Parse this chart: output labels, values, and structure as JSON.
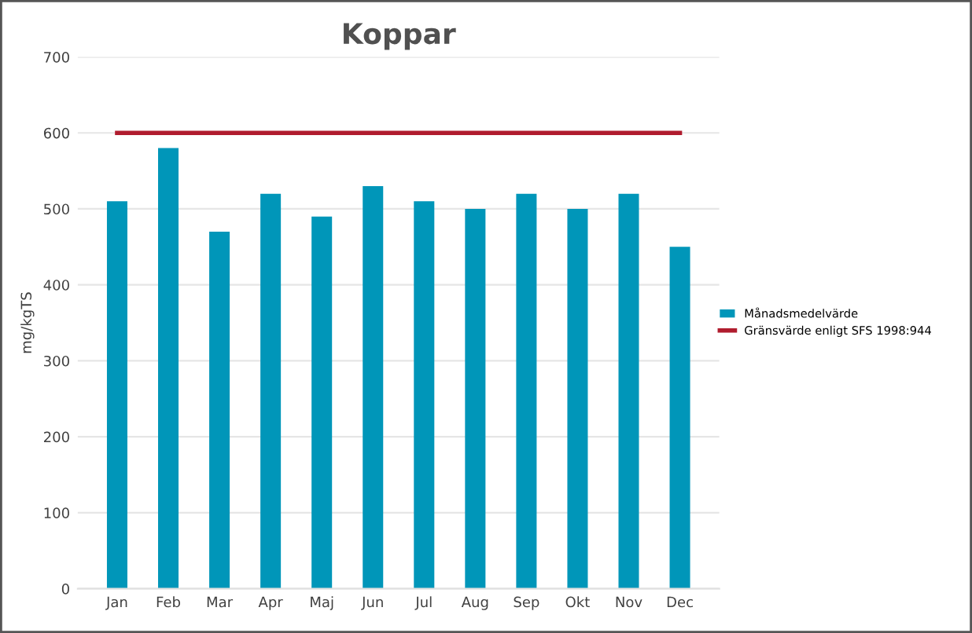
{
  "chart_data": {
    "type": "bar",
    "title": "Koppar",
    "ylabel": "mg/kgTS",
    "categories": [
      "Jan",
      "Feb",
      "Mar",
      "Apr",
      "Maj",
      "Jun",
      "Jul",
      "Aug",
      "Sep",
      "Okt",
      "Nov",
      "Dec"
    ],
    "series": [
      {
        "name": "Månadsmedelvärde",
        "color": "#0096b9",
        "values": [
          510,
          580,
          470,
          520,
          490,
          530,
          510,
          500,
          520,
          500,
          520,
          450
        ]
      },
      {
        "name": "Gränsvärde enligt SFS 1998:944",
        "type": "line",
        "color": "#b01c2e",
        "values": [
          600,
          600,
          600,
          600,
          600,
          600,
          600,
          600,
          600,
          600,
          600,
          600
        ]
      }
    ],
    "ylim": [
      0,
      700
    ],
    "yticks": [
      0,
      100,
      200,
      300,
      400,
      500,
      600,
      700
    ],
    "grid": "y",
    "legend": "right"
  }
}
